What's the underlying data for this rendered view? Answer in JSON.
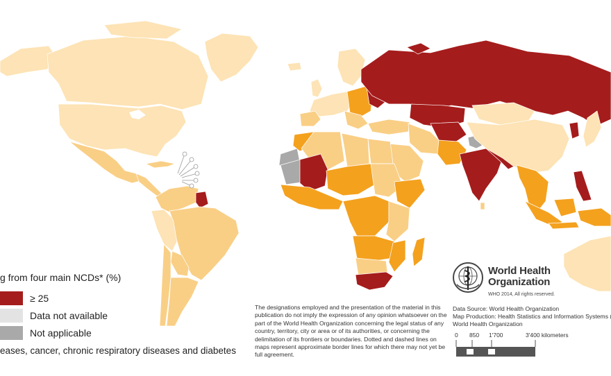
{
  "colors": {
    "ocean": "#ffffff",
    "class_low": "#fde3b5",
    "class_mid_low": "#f9cf86",
    "class_mid_high": "#f4a11e",
    "class_high": "#a51c1c",
    "data_not_available": "#e3e3e3",
    "not_applicable": "#a9a9a9",
    "border": "#ffffff"
  },
  "legend": {
    "title": "g from four main NCDs* (%)",
    "items": [
      {
        "label": "≥ 25",
        "color": "#a51c1c"
      },
      {
        "label": "Data not available",
        "color": "#e3e3e3"
      },
      {
        "label": "Not applicable",
        "color": "#a9a9a9"
      }
    ],
    "footnote": "eases, cancer, chronic respiratory diseases and diabetes"
  },
  "disclaimer": "The designations employed and the presentation of the material in this publication do not imply the expression of any opinion whatsoever on the part of the World Health Organization concerning the legal status of any country, territory, city or area or of its authorities, or concerning the delimitation of its frontiers or boundaries. Dotted and dashed lines on maps represent approximate border lines for which there may not yet be full agreement.",
  "organization": {
    "name_line1": "World Health",
    "name_line2": "Organization",
    "rights": "WHO 2014, All rights reserved.",
    "logo_icon": "who-emblem-icon"
  },
  "credits": {
    "source": "Data Source: World Health Organization",
    "production": "Map Production: Health Statistics and Information Systems (HSI)",
    "org": "World Health Organization"
  },
  "scale": {
    "ticks": [
      "0",
      "850",
      "1'700",
      "3'400 kilometers"
    ]
  }
}
